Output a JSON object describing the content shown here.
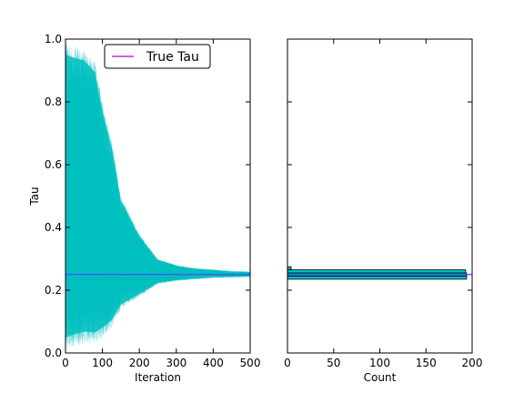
{
  "chart_data": [
    {
      "type": "line",
      "xlabel": "Iteration",
      "ylabel": "Tau",
      "xlim": [
        0,
        500
      ],
      "ylim": [
        0.0,
        1.0
      ],
      "xticks": [
        "0",
        "100",
        "200",
        "300",
        "400",
        "500"
      ],
      "yticks": [
        "0.0",
        "0.2",
        "0.4",
        "0.6",
        "0.8",
        "1.0"
      ],
      "legend": {
        "position": "top-right",
        "entries": [
          {
            "label": "True Tau",
            "color": "#bf00bf"
          }
        ]
      },
      "reference_line": {
        "name": "True Tau",
        "y": 0.25,
        "color": "#4b4bff"
      },
      "series": [
        {
          "style": "many semi-transparent trace lines",
          "color": "#00bfbf",
          "envelope": {
            "x": [
              0,
              20,
              50,
              80,
              100,
              125,
              150,
              200,
              250,
              300,
              350,
              400,
              450,
              500
            ],
            "upper": [
              0.99,
              0.98,
              0.97,
              0.93,
              0.8,
              0.68,
              0.5,
              0.38,
              0.3,
              0.28,
              0.27,
              0.265,
              0.26,
              0.258
            ],
            "lower": [
              0.01,
              0.02,
              0.03,
              0.03,
              0.05,
              0.08,
              0.14,
              0.18,
              0.22,
              0.23,
              0.235,
              0.24,
              0.242,
              0.244
            ]
          }
        }
      ]
    },
    {
      "type": "bar",
      "orientation": "horizontal",
      "xlabel": "Count",
      "xlim": [
        0,
        200
      ],
      "ylim": [
        0.0,
        1.0
      ],
      "xticks": [
        "0",
        "50",
        "100",
        "150",
        "200"
      ],
      "color": "#00bfbf",
      "bars": [
        {
          "y0": 0.235,
          "y1": 0.245,
          "count": 194
        },
        {
          "y0": 0.245,
          "y1": 0.255,
          "count": 194
        },
        {
          "y0": 0.255,
          "y1": 0.265,
          "count": 193
        },
        {
          "y0": 0.265,
          "y1": 0.275,
          "count": 4
        }
      ],
      "reference_line": {
        "y": 0.25,
        "color": "#4b4bff"
      }
    }
  ]
}
